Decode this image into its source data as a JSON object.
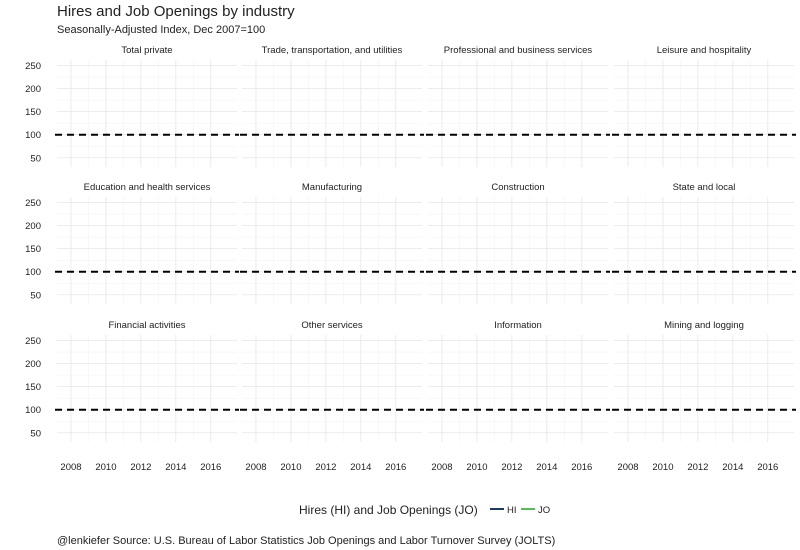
{
  "chart_data": {
    "type": "line",
    "title": "Hires and Job Openings by industry",
    "subtitle": "Seasonally-Adjusted Index, Dec 2007=100",
    "caption": "@lenkiefer Source: U.S. Bureau of Labor Statistics Job Openings and Labor Turnover Survey (JOLTS)",
    "facet_layout": "4 columns x 3 rows",
    "panels": [
      "Total private",
      "Trade, transportation, and utilities",
      "Professional and business services",
      "Leisure and hospitality",
      "Education and health services",
      "Manufacturing",
      "Construction",
      "State and local",
      "Financial activities",
      "Other services",
      "Information",
      "Mining and logging"
    ],
    "x_ticks": [
      2008,
      2010,
      2012,
      2014,
      2016
    ],
    "xlim": [
      2007.2,
      2017.5
    ],
    "y_ticks": [
      50,
      100,
      150,
      200,
      250
    ],
    "ylim": [
      30,
      262
    ],
    "reference_line": {
      "y": 100,
      "style": "dashed",
      "color": "#000000"
    },
    "legend": {
      "title": "Hires (HI) and Job Openings (JO)",
      "position": "bottom",
      "entries": [
        {
          "label": "HI",
          "color": "#1f3a5f"
        },
        {
          "label": "JO",
          "color": "#5cb85c"
        }
      ]
    },
    "series": [
      {
        "name": "HI",
        "color": "#1f3a5f",
        "values": []
      },
      {
        "name": "JO",
        "color": "#5cb85c",
        "values": []
      }
    ],
    "grid": true
  }
}
